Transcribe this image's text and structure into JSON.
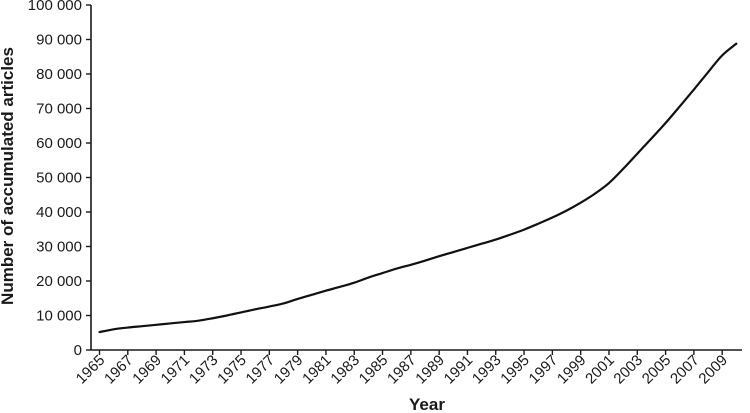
{
  "chart_data": {
    "type": "line",
    "xlabel": "Year",
    "ylabel": "Number of accumulated articles",
    "ylim": [
      0,
      100000
    ],
    "xlim": [
      1965,
      2010
    ],
    "y_ticks": [
      0,
      10000,
      20000,
      30000,
      40000,
      50000,
      60000,
      70000,
      80000,
      90000,
      100000
    ],
    "y_tick_labels": [
      "0",
      "10 000",
      "20 000",
      "30 000",
      "40 000",
      "50 000",
      "60 000",
      "70 000",
      "80 000",
      "90 000",
      "100 000"
    ],
    "x_ticks": [
      1965,
      1967,
      1969,
      1971,
      1973,
      1975,
      1977,
      1979,
      1981,
      1983,
      1985,
      1987,
      1989,
      1991,
      1993,
      1995,
      1997,
      1999,
      2001,
      2003,
      2005,
      2007,
      2009
    ],
    "x_tick_labels": [
      "1965",
      "1967",
      "1969",
      "1971",
      "1973",
      "1975",
      "1977",
      "1979",
      "1981",
      "1983",
      "1985",
      "1987",
      "1989",
      "1991",
      "1993",
      "1995",
      "1997",
      "1999",
      "2001",
      "2003",
      "2005",
      "2007",
      "2009"
    ],
    "grid": false,
    "legend": "none",
    "series": [
      {
        "color": "#111111",
        "x": [
          1965,
          1966,
          1967,
          1968,
          1969,
          1970,
          1971,
          1972,
          1973,
          1974,
          1975,
          1976,
          1977,
          1978,
          1979,
          1980,
          1981,
          1982,
          1983,
          1984,
          1985,
          1986,
          1987,
          1988,
          1989,
          1990,
          1991,
          1992,
          1993,
          1994,
          1995,
          1996,
          1997,
          1998,
          1999,
          2000,
          2001,
          2002,
          2003,
          2004,
          2005,
          2006,
          2007,
          2008,
          2009,
          2010
        ],
        "y": [
          5200,
          6000,
          6500,
          6900,
          7300,
          7700,
          8100,
          8500,
          9200,
          10000,
          10900,
          11800,
          12600,
          13500,
          14800,
          16000,
          17200,
          18300,
          19500,
          21000,
          22300,
          23600,
          24700,
          25900,
          27200,
          28400,
          29600,
          30800,
          32000,
          33400,
          34900,
          36600,
          38400,
          40400,
          42700,
          45300,
          48400,
          52500,
          56900,
          61300,
          65800,
          70600,
          75500,
          80500,
          85400,
          88800
        ]
      }
    ]
  }
}
